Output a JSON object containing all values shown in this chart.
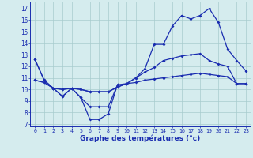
{
  "xlabel": "Graphe des températures (°c)",
  "hours": [
    0,
    1,
    2,
    3,
    4,
    5,
    6,
    7,
    8,
    9,
    10,
    11,
    12,
    13,
    14,
    15,
    16,
    17,
    18,
    19,
    20,
    21,
    22,
    23
  ],
  "line_dip": [
    12.6,
    10.8,
    10.1,
    9.4,
    10.1,
    9.3,
    7.4,
    7.4,
    7.9,
    10.4,
    null,
    null,
    null,
    null,
    null,
    null,
    null,
    null,
    null,
    null,
    null,
    null,
    null,
    null
  ],
  "line_low": [
    10.8,
    10.6,
    10.1,
    10.0,
    10.1,
    10.0,
    9.8,
    9.8,
    9.8,
    10.2,
    10.5,
    10.6,
    10.8,
    10.9,
    11.0,
    11.1,
    11.2,
    11.3,
    11.4,
    11.3,
    11.2,
    11.1,
    10.5,
    10.5
  ],
  "line_mid": [
    10.8,
    10.6,
    10.1,
    10.0,
    10.1,
    10.0,
    9.8,
    9.8,
    9.8,
    10.2,
    10.5,
    11.0,
    11.5,
    11.9,
    12.5,
    12.7,
    12.9,
    13.0,
    13.1,
    12.5,
    12.2,
    12.0,
    10.5,
    10.5
  ],
  "line_high": [
    12.6,
    10.8,
    10.1,
    9.4,
    10.1,
    9.3,
    8.5,
    8.5,
    8.5,
    10.4,
    10.5,
    11.0,
    11.8,
    13.9,
    13.9,
    15.5,
    16.4,
    16.1,
    16.4,
    17.0,
    15.8,
    13.5,
    12.5,
    11.6
  ],
  "ylim_min": 6.8,
  "ylim_max": 17.6,
  "yticks": [
    7,
    8,
    9,
    10,
    11,
    12,
    13,
    14,
    15,
    16,
    17
  ],
  "bg_color": "#d5ecee",
  "line_color": "#1a2db0",
  "grid_color": "#a8ccce"
}
